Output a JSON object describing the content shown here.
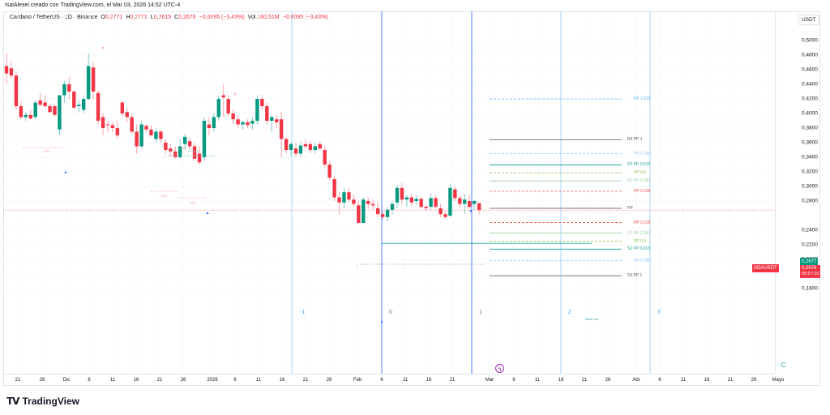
{
  "credit": "IsaiAlexei creado con TradingView.com, el Mar 03, 2026 14:52 UTC-4",
  "legend": {
    "symbol": "Cardano / TetherUS · 1D · Binance",
    "open_label": "O",
    "open": "0,2771",
    "high_label": "H",
    "high": "0,2771",
    "low_label": "L",
    "low": "0,2615",
    "close_label": "C",
    "close": "0,2676",
    "change": "−0,0095 (−3,43%)",
    "vol_label": "Vol.",
    "vol": "160,51M",
    "vol_change": "−0,0095 (−3,43%)"
  },
  "axis": {
    "currency": "USDT",
    "price_ticks": [
      "0,5000",
      "0,4800",
      "0,4600",
      "0,4400",
      "0,4200",
      "0,4000",
      "0,3800",
      "0,3600",
      "0,3400",
      "0,3200",
      "0,3000",
      "0,2800",
      "0,2400",
      "0,2200",
      "0,2000",
      "0,1800",
      "0,1600"
    ],
    "date_ticks": [
      "21",
      "26",
      "Dic",
      "6",
      "11",
      "16",
      "21",
      "26",
      "2026",
      "6",
      "11",
      "16",
      "21",
      "26",
      "Feb",
      "6",
      "11",
      "16",
      "21",
      "Mar",
      "6",
      "11",
      "16",
      "21",
      "26",
      "Abr",
      "6",
      "11",
      "16",
      "21",
      "26",
      "Mayo"
    ]
  },
  "price_tags": {
    "symbol": "ADAUSDT",
    "bid": "0,2677",
    "last": "0,2676",
    "countdown": "05:07:10",
    "green": "#089981",
    "red": "#f23645"
  },
  "pivots": [
    {
      "label": "PP 1.618",
      "price": 0.42,
      "style": "dashed",
      "color": "#64b5f6"
    },
    {
      "label": "R3 PP 1",
      "price": 0.364,
      "style": "solid",
      "color": "#787b86"
    },
    {
      "label": "PP 0.786",
      "price": 0.345,
      "style": "dashed",
      "color": "#90caf9"
    },
    {
      "label": "R2 PP 0.618",
      "price": 0.3295,
      "style": "solid",
      "color": "#26a69a"
    },
    {
      "label": "PP 0.5",
      "price": 0.3185,
      "style": "dashed",
      "color": "#8bc34a"
    },
    {
      "label": "R1 PP 0.382",
      "price": 0.3075,
      "style": "solid",
      "color": "#a5d6a7"
    },
    {
      "label": "PP 0.236",
      "price": 0.2935,
      "style": "dashed",
      "color": "#ef5350"
    },
    {
      "label": "PP",
      "price": 0.27,
      "style": "solid",
      "color": "#787b86"
    },
    {
      "label": "PP 0.236",
      "price": 0.2505,
      "style": "dashed",
      "color": "#ef5350"
    },
    {
      "label": "S1 PP 0.382",
      "price": 0.236,
      "style": "solid",
      "color": "#a5d6a7"
    },
    {
      "label": "PP 0.5",
      "price": 0.225,
      "style": "dashed",
      "color": "#8bc34a"
    },
    {
      "label": "S2 PP 0.618",
      "price": 0.214,
      "style": "solid",
      "color": "#26a69a"
    },
    {
      "label": "PP 0.786",
      "price": 0.198,
      "style": "dashed",
      "color": "#90caf9"
    },
    {
      "label": "S3 PP 1",
      "price": 0.1775,
      "style": "solid",
      "color": "#787b86"
    }
  ],
  "cycles": [
    "-1",
    "0",
    "1",
    "2",
    "3"
  ],
  "annotations": {
    "bos": "BOS",
    "eqh": "EQH",
    "choch": "CHoCH",
    "weak_low": "Weak Low"
  },
  "chart_data": {
    "type": "candlestick",
    "title": "Cardano / TetherUS · 1D · Binance",
    "ylabel": "USDT",
    "ylim": [
      0.155,
      0.515
    ],
    "x_range": "Nov 2025 – May 2026 (daily)",
    "ohlc": [
      [
        0.465,
        0.482,
        0.44,
        0.455
      ],
      [
        0.462,
        0.472,
        0.448,
        0.452
      ],
      [
        0.452,
        0.458,
        0.405,
        0.41
      ],
      [
        0.41,
        0.418,
        0.392,
        0.395
      ],
      [
        0.395,
        0.402,
        0.39,
        0.398
      ],
      [
        0.398,
        0.405,
        0.392,
        0.393
      ],
      [
        0.395,
        0.418,
        0.392,
        0.415
      ],
      [
        0.418,
        0.428,
        0.41,
        0.412
      ],
      [
        0.415,
        0.425,
        0.408,
        0.41
      ],
      [
        0.41,
        0.414,
        0.4,
        0.402
      ],
      [
        0.41,
        0.412,
        0.395,
        0.398
      ],
      [
        0.378,
        0.42,
        0.37,
        0.425
      ],
      [
        0.425,
        0.445,
        0.415,
        0.44
      ],
      [
        0.44,
        0.45,
        0.42,
        0.43
      ],
      [
        0.43,
        0.432,
        0.406,
        0.408
      ],
      [
        0.41,
        0.418,
        0.402,
        0.412
      ],
      [
        0.405,
        0.425,
        0.4,
        0.42
      ],
      [
        0.42,
        0.482,
        0.418,
        0.465
      ],
      [
        0.463,
        0.47,
        0.42,
        0.43
      ],
      [
        0.428,
        0.432,
        0.385,
        0.39
      ],
      [
        0.395,
        0.4,
        0.37,
        0.38
      ],
      [
        0.385,
        0.39,
        0.375,
        0.384
      ],
      [
        0.384,
        0.388,
        0.374,
        0.38
      ],
      [
        0.38,
        0.39,
        0.365,
        0.37
      ],
      [
        0.415,
        0.418,
        0.395,
        0.4
      ],
      [
        0.402,
        0.408,
        0.388,
        0.395
      ],
      [
        0.395,
        0.4,
        0.372,
        0.375
      ],
      [
        0.375,
        0.385,
        0.345,
        0.355
      ],
      [
        0.355,
        0.39,
        0.352,
        0.385
      ],
      [
        0.383,
        0.385,
        0.374,
        0.378
      ],
      [
        0.378,
        0.384,
        0.368,
        0.37
      ],
      [
        0.365,
        0.38,
        0.36,
        0.375
      ],
      [
        0.375,
        0.378,
        0.36,
        0.365
      ],
      [
        0.36,
        0.365,
        0.345,
        0.35
      ],
      [
        0.352,
        0.358,
        0.34,
        0.348
      ],
      [
        0.348,
        0.355,
        0.338,
        0.34
      ],
      [
        0.34,
        0.365,
        0.338,
        0.355
      ],
      [
        0.358,
        0.372,
        0.35,
        0.368
      ],
      [
        0.362,
        0.368,
        0.35,
        0.355
      ],
      [
        0.355,
        0.36,
        0.335,
        0.338
      ],
      [
        0.345,
        0.355,
        0.33,
        0.333
      ],
      [
        0.34,
        0.395,
        0.335,
        0.39
      ],
      [
        0.385,
        0.395,
        0.37,
        0.38
      ],
      [
        0.38,
        0.4,
        0.375,
        0.395
      ],
      [
        0.395,
        0.425,
        0.39,
        0.42
      ],
      [
        0.425,
        0.44,
        0.395,
        0.422
      ],
      [
        0.42,
        0.425,
        0.395,
        0.4
      ],
      [
        0.4,
        0.405,
        0.385,
        0.392
      ],
      [
        0.392,
        0.398,
        0.38,
        0.385
      ],
      [
        0.385,
        0.39,
        0.378,
        0.388
      ],
      [
        0.388,
        0.392,
        0.38,
        0.384
      ],
      [
        0.386,
        0.395,
        0.378,
        0.39
      ],
      [
        0.39,
        0.425,
        0.385,
        0.42
      ],
      [
        0.42,
        0.425,
        0.405,
        0.41
      ],
      [
        0.41,
        0.415,
        0.385,
        0.39
      ],
      [
        0.39,
        0.398,
        0.375,
        0.395
      ],
      [
        0.392,
        0.398,
        0.38,
        0.388
      ],
      [
        0.392,
        0.402,
        0.34,
        0.365
      ],
      [
        0.365,
        0.368,
        0.345,
        0.35
      ],
      [
        0.35,
        0.36,
        0.342,
        0.358
      ],
      [
        0.352,
        0.36,
        0.34,
        0.345
      ],
      [
        0.345,
        0.362,
        0.34,
        0.356
      ],
      [
        0.358,
        0.365,
        0.352,
        0.355
      ],
      [
        0.358,
        0.362,
        0.345,
        0.35
      ],
      [
        0.35,
        0.36,
        0.345,
        0.355
      ],
      [
        0.358,
        0.362,
        0.35,
        0.352
      ],
      [
        0.35,
        0.355,
        0.325,
        0.33
      ],
      [
        0.33,
        0.335,
        0.308,
        0.312
      ],
      [
        0.31,
        0.315,
        0.28,
        0.285
      ],
      [
        0.285,
        0.292,
        0.262,
        0.278
      ],
      [
        0.278,
        0.298,
        0.27,
        0.292
      ],
      [
        0.292,
        0.298,
        0.278,
        0.282
      ],
      [
        0.282,
        0.29,
        0.272,
        0.276
      ],
      [
        0.274,
        0.28,
        0.248,
        0.25
      ],
      [
        0.25,
        0.285,
        0.25,
        0.282
      ],
      [
        0.28,
        0.285,
        0.27,
        0.276
      ],
      [
        0.276,
        0.282,
        0.268,
        0.274
      ],
      [
        0.27,
        0.278,
        0.258,
        0.262
      ],
      [
        0.262,
        0.268,
        0.255,
        0.258
      ],
      [
        0.258,
        0.272,
        0.252,
        0.268
      ],
      [
        0.268,
        0.28,
        0.262,
        0.276
      ],
      [
        0.278,
        0.302,
        0.27,
        0.298
      ],
      [
        0.298,
        0.305,
        0.275,
        0.282
      ],
      [
        0.282,
        0.288,
        0.272,
        0.285
      ],
      [
        0.285,
        0.29,
        0.272,
        0.278
      ],
      [
        0.28,
        0.288,
        0.275,
        0.283
      ],
      [
        0.283,
        0.286,
        0.27,
        0.272
      ],
      [
        0.272,
        0.276,
        0.266,
        0.27
      ],
      [
        0.272,
        0.29,
        0.268,
        0.284
      ],
      [
        0.284,
        0.288,
        0.27,
        0.272
      ],
      [
        0.27,
        0.276,
        0.258,
        0.262
      ],
      [
        0.262,
        0.266,
        0.255,
        0.258
      ],
      [
        0.26,
        0.304,
        0.258,
        0.298
      ],
      [
        0.296,
        0.3,
        0.28,
        0.284
      ],
      [
        0.284,
        0.288,
        0.27,
        0.276
      ],
      [
        0.276,
        0.29,
        0.262,
        0.282
      ],
      [
        0.28,
        0.288,
        0.268,
        0.272
      ],
      [
        0.276,
        0.282,
        0.268,
        0.28
      ],
      [
        0.2771,
        0.2771,
        0.2615,
        0.2676
      ]
    ],
    "pivot_levels": {
      "R3": 0.364,
      "R2": 0.3295,
      "R1": 0.3075,
      "PP": 0.27,
      "S1": 0.236,
      "S2": 0.214,
      "S3": 0.1775,
      "fib_1.618": 0.42
    },
    "last_price": 0.2676,
    "grid": true,
    "legend_position": "top-left"
  }
}
